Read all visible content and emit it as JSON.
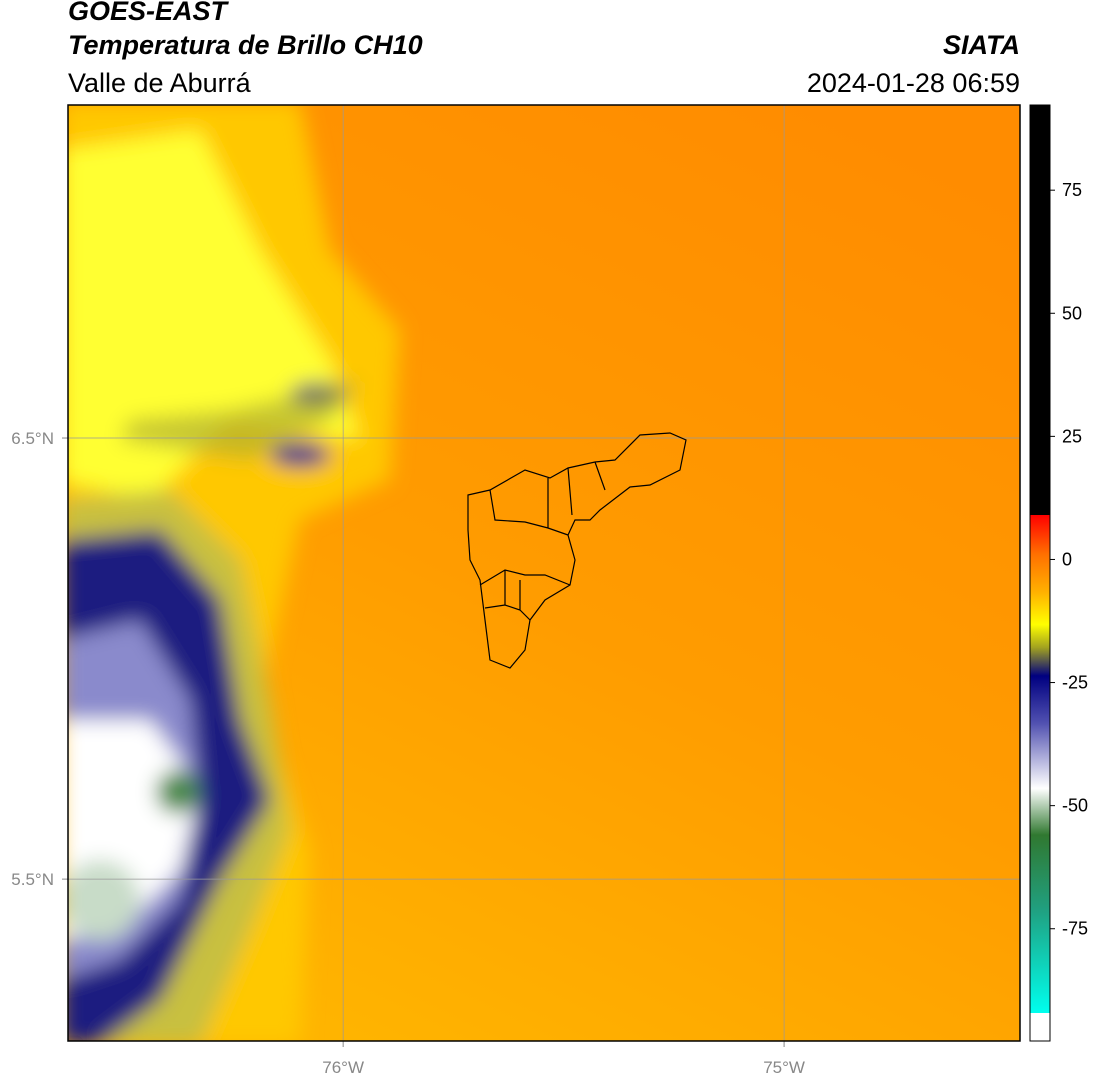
{
  "header": {
    "title": "GOES-EAST",
    "subtitle": "Temperatura de Brillo CH10",
    "region": "Valle de Aburrá",
    "source": "SIATA",
    "timestamp": "2024-01-28 06:59"
  },
  "map": {
    "xlim": [
      -76.624,
      -74.465
    ],
    "ylim": [
      5.133,
      7.255
    ],
    "xticks": [
      {
        "value": -76,
        "label": "76°W"
      },
      {
        "value": -75,
        "label": "75°W"
      }
    ],
    "yticks": [
      {
        "value": 6.5,
        "label": "6.5°N"
      },
      {
        "value": 5.5,
        "label": "5.5°N"
      }
    ],
    "grid": true
  },
  "colorbar": {
    "range": [
      -97.8,
      92.3
    ],
    "ticks": [
      75,
      50,
      25,
      0,
      -25,
      -50,
      -75
    ]
  }
}
